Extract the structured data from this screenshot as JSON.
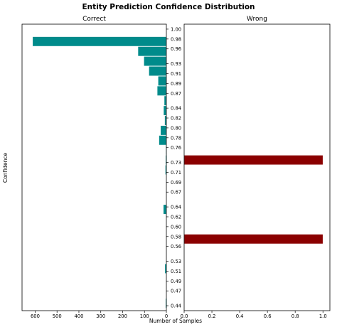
{
  "chart_data": {
    "type": "bar",
    "orientation": "horizontal",
    "title": "Entity Prediction Confidence Distribution",
    "ylabel": "Confidence",
    "xlabel": "Number of Samples",
    "ylim": [
      0.43,
      1.01
    ],
    "yticks": [
      "1.00",
      "0.98",
      "0.96",
      "0.93",
      "0.91",
      "0.89",
      "0.87",
      "0.84",
      "0.82",
      "0.80",
      "0.78",
      "0.76",
      "0.73",
      "0.71",
      "0.69",
      "0.67",
      "0.64",
      "0.62",
      "0.60",
      "0.58",
      "0.56",
      "0.53",
      "0.51",
      "0.49",
      "0.47",
      "0.44"
    ],
    "panels": [
      {
        "title": "Correct",
        "color": "#008B8B",
        "x_inverted": true,
        "xlim": [
          0,
          660
        ],
        "xticks": [
          "600",
          "500",
          "400",
          "300",
          "200",
          "100",
          "0"
        ],
        "bars": [
          {
            "y": 0.975,
            "value": 612
          },
          {
            "y": 0.955,
            "value": 130
          },
          {
            "y": 0.935,
            "value": 103
          },
          {
            "y": 0.915,
            "value": 80
          },
          {
            "y": 0.895,
            "value": 38
          },
          {
            "y": 0.875,
            "value": 42
          },
          {
            "y": 0.855,
            "value": 10
          },
          {
            "y": 0.835,
            "value": 13
          },
          {
            "y": 0.815,
            "value": 8
          },
          {
            "y": 0.795,
            "value": 27
          },
          {
            "y": 0.775,
            "value": 34
          },
          {
            "y": 0.755,
            "value": 3
          },
          {
            "y": 0.735,
            "value": 4
          },
          {
            "y": 0.715,
            "value": 5
          },
          {
            "y": 0.635,
            "value": 14
          },
          {
            "y": 0.575,
            "value": 1
          },
          {
            "y": 0.515,
            "value": 7
          },
          {
            "y": 0.445,
            "value": 4
          }
        ]
      },
      {
        "title": "Wrong",
        "color": "#8B0000",
        "x_inverted": false,
        "xlim": [
          0,
          1.05
        ],
        "xticks": [
          "0.0",
          "0.2",
          "0.4",
          "0.6",
          "0.8",
          "1.0"
        ],
        "bars": [
          {
            "y": 0.735,
            "value": 1
          },
          {
            "y": 0.575,
            "value": 1
          }
        ]
      }
    ]
  }
}
